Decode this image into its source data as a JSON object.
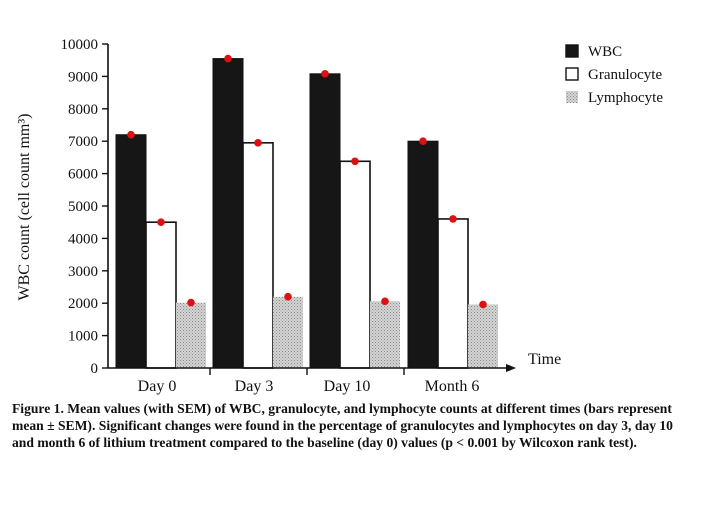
{
  "chart_data": {
    "type": "bar",
    "categories": [
      "Day 0",
      "Day 3",
      "Day 10",
      "Month 6"
    ],
    "series": [
      {
        "name": "WBC",
        "color": "#161616",
        "pattern": "solid",
        "values": [
          7200,
          9550,
          9080,
          7000
        ]
      },
      {
        "name": "Granulocyte",
        "color": "#ffffff",
        "pattern": "hollow",
        "values": [
          4500,
          6950,
          6380,
          4600
        ]
      },
      {
        "name": "Lymphocyte",
        "color": "#c8c8c8",
        "pattern": "stipple",
        "values": [
          2020,
          2200,
          2060,
          1960
        ]
      }
    ],
    "marker_color": "#dd1111",
    "xlabel": "Time",
    "ylabel": "WBC count (cell count mm³)",
    "ylim": [
      0,
      10000
    ],
    "yticks": [
      0,
      1000,
      2000,
      3000,
      4000,
      5000,
      6000,
      7000,
      8000,
      9000,
      10000
    ],
    "ytick_labels": [
      "0",
      "1000",
      "2000",
      "3000",
      "4000",
      "5000",
      "6000",
      "7000",
      "8000",
      "9000",
      "10000"
    ],
    "legend_position": "top-right",
    "grid": false
  },
  "caption": {
    "figure_label": "Figure 1.",
    "text": "Mean values (with SEM) of WBC, granulocyte, and lymphocyte counts at different times (bars represent mean ± SEM). Significant changes were found in the percentage of granulocytes and lymphocytes on day 3, day 10 and month 6 of lithium treatment compared to the baseline (day 0) values (p < 0.001 by Wilcoxon rank test)."
  }
}
